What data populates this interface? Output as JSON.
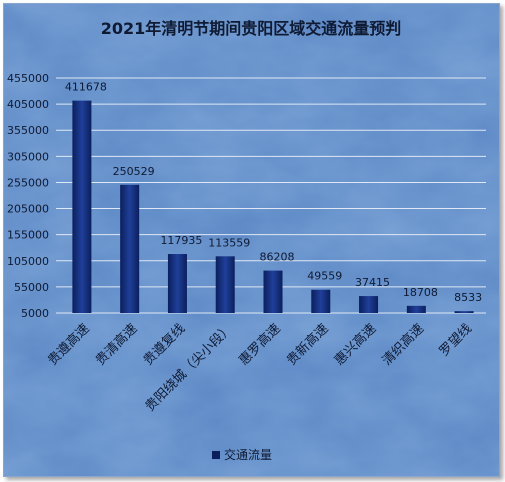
{
  "chart_data": {
    "type": "bar",
    "title": "2021年清明节期间贵阳区域交通流量预判",
    "categories": [
      "贵遵高速",
      "贵清高速",
      "贵遵复线",
      "贵阳绕城（尖小段）",
      "惠罗高速",
      "贵新高速",
      "惠兴高速",
      "清织高速",
      "罗望线"
    ],
    "series": [
      {
        "name": "交通流量",
        "values": [
          411678,
          250529,
          117935,
          113559,
          86208,
          49559,
          37415,
          18708,
          8533
        ]
      }
    ],
    "y_ticks": [
      "5000",
      "55000",
      "105000",
      "155000",
      "205000",
      "255000",
      "305000",
      "355000",
      "405000",
      "455000"
    ],
    "ylim": [
      5000,
      455000
    ],
    "xlabel": "",
    "ylabel": "",
    "grid": true,
    "legend_position": "bottom",
    "colors": {
      "bar_dark": "#0b1f5c",
      "bar_light": "#1f3f9a",
      "background": "#5a86c4",
      "gridline": "#dfe8f5",
      "text": "#0f1a33"
    }
  }
}
